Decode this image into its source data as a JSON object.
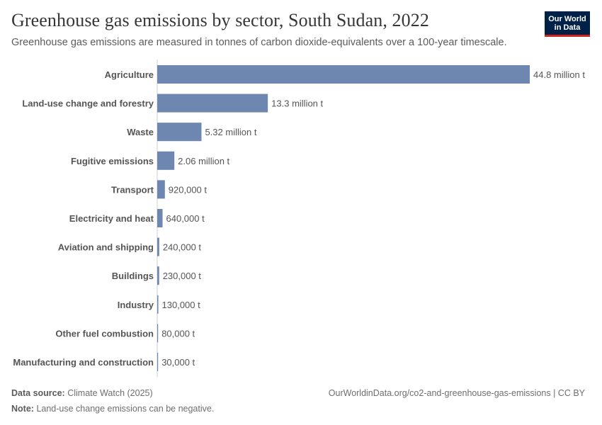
{
  "header": {
    "title": "Greenhouse gas emissions by sector, South Sudan, 2022",
    "subtitle": "Greenhouse gas emissions are measured in tonnes of carbon dioxide-equivalents over a 100-year timescale."
  },
  "logo": {
    "line1": "Our World",
    "line2": "in Data",
    "bg_color": "#002147",
    "accent_color": "#ce261e"
  },
  "footer": {
    "source_label": "Data source:",
    "source_value": "Climate Watch (2025)",
    "note_label": "Note:",
    "note_value": "Land-use change emissions can be negative.",
    "url": "OurWorldinData.org/co2-and-greenhouse-gas-emissions | CC BY"
  },
  "chart_data": {
    "type": "bar",
    "orientation": "horizontal",
    "bar_color": "#6d87b1",
    "unit": "tonnes CO2e",
    "categories": [
      "Agriculture",
      "Land-use change and forestry",
      "Waste",
      "Fugitive emissions",
      "Transport",
      "Electricity and heat",
      "Aviation and shipping",
      "Buildings",
      "Industry",
      "Other fuel combustion",
      "Manufacturing and construction"
    ],
    "values": [
      44800000,
      13300000,
      5320000,
      2060000,
      920000,
      640000,
      240000,
      230000,
      130000,
      80000,
      30000
    ],
    "value_labels": [
      "44.8 million t",
      "13.3 million t",
      "5.32 million t",
      "2.06 million t",
      "920,000 t",
      "640,000 t",
      "240,000 t",
      "230,000 t",
      "130,000 t",
      "80,000 t",
      "30,000 t"
    ],
    "xlim": [
      0,
      44800000
    ],
    "grid": false,
    "legend": "none"
  }
}
